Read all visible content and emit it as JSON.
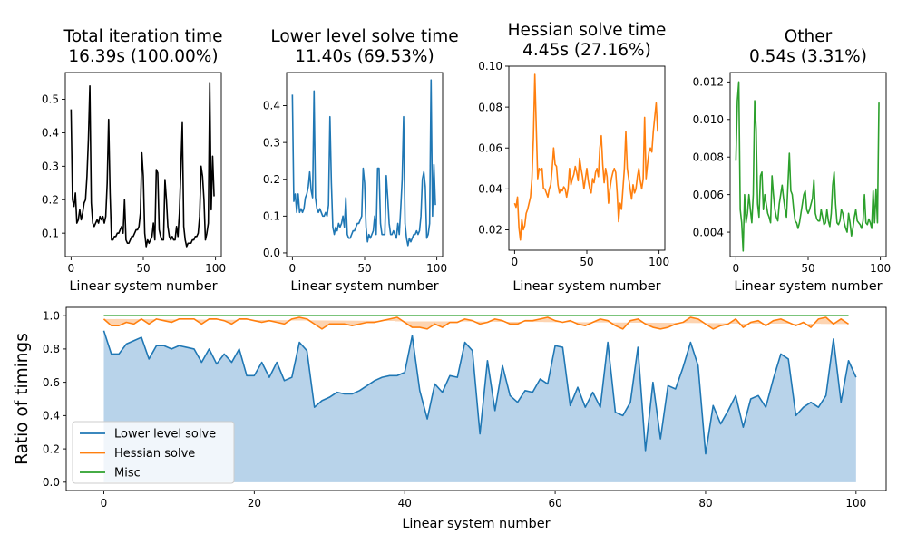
{
  "figure": {
    "bottom_ylabel": "Ratio of timings",
    "bottom_xlabel": "Linear system number",
    "top_xlabel": "Linear system number"
  },
  "chart_data": [
    {
      "type": "line",
      "title_line1": "Total iteration time",
      "title_line2": "16.39s  (100.00%)",
      "xlabel": "Linear system number",
      "xlim": [
        -4,
        104
      ],
      "ylim": [
        0.03,
        0.58
      ],
      "xticks": [
        0,
        50,
        100
      ],
      "yticks": [
        0.1,
        0.2,
        0.3,
        0.4,
        0.5
      ],
      "ytick_labels": [
        "0.1",
        "0.2",
        "0.3",
        "0.4",
        "0.5"
      ],
      "color": "#000000",
      "series": [
        {
          "values": [
            0.47,
            0.2,
            0.18,
            0.22,
            0.13,
            0.14,
            0.17,
            0.14,
            0.16,
            0.19,
            0.2,
            0.27,
            0.38,
            0.54,
            0.19,
            0.13,
            0.12,
            0.13,
            0.14,
            0.13,
            0.15,
            0.14,
            0.15,
            0.13,
            0.15,
            0.25,
            0.44,
            0.22,
            0.08,
            0.08,
            0.09,
            0.09,
            0.1,
            0.1,
            0.11,
            0.12,
            0.1,
            0.2,
            0.08,
            0.07,
            0.07,
            0.08,
            0.09,
            0.09,
            0.1,
            0.11,
            0.11,
            0.12,
            0.16,
            0.34,
            0.27,
            0.1,
            0.06,
            0.08,
            0.07,
            0.08,
            0.09,
            0.13,
            0.08,
            0.29,
            0.28,
            0.11,
            0.09,
            0.08,
            0.08,
            0.26,
            0.2,
            0.12,
            0.09,
            0.08,
            0.09,
            0.08,
            0.08,
            0.12,
            0.09,
            0.16,
            0.29,
            0.43,
            0.12,
            0.08,
            0.06,
            0.07,
            0.07,
            0.07,
            0.08,
            0.08,
            0.09,
            0.09,
            0.1,
            0.15,
            0.3,
            0.27,
            0.2,
            0.08,
            0.1,
            0.13,
            0.55,
            0.17,
            0.33,
            0.21
          ]
        }
      ]
    },
    {
      "type": "line",
      "title_line1": "Lower level solve time",
      "title_line2": "11.40s  (69.53%)",
      "xlabel": "Linear system number",
      "xlim": [
        -4,
        104
      ],
      "ylim": [
        -0.01,
        0.49
      ],
      "xticks": [
        0,
        50,
        100
      ],
      "yticks": [
        0.0,
        0.1,
        0.2,
        0.3,
        0.4
      ],
      "ytick_labels": [
        "0.0",
        "0.1",
        "0.2",
        "0.3",
        "0.4"
      ],
      "color": "#1f77b4",
      "series": [
        {
          "values": [
            0.43,
            0.14,
            0.16,
            0.11,
            0.16,
            0.11,
            0.12,
            0.11,
            0.12,
            0.15,
            0.16,
            0.18,
            0.22,
            0.17,
            0.15,
            0.44,
            0.15,
            0.12,
            0.11,
            0.12,
            0.11,
            0.1,
            0.1,
            0.11,
            0.1,
            0.13,
            0.37,
            0.19,
            0.07,
            0.05,
            0.07,
            0.06,
            0.08,
            0.07,
            0.08,
            0.1,
            0.07,
            0.15,
            0.05,
            0.04,
            0.04,
            0.05,
            0.06,
            0.06,
            0.07,
            0.08,
            0.08,
            0.09,
            0.1,
            0.23,
            0.19,
            0.07,
            0.03,
            0.05,
            0.04,
            0.05,
            0.06,
            0.1,
            0.05,
            0.23,
            0.23,
            0.08,
            0.05,
            0.05,
            0.05,
            0.21,
            0.15,
            0.08,
            0.05,
            0.05,
            0.06,
            0.05,
            0.04,
            0.08,
            0.05,
            0.12,
            0.2,
            0.37,
            0.08,
            0.04,
            0.02,
            0.04,
            0.03,
            0.04,
            0.05,
            0.05,
            0.06,
            0.05,
            0.06,
            0.1,
            0.2,
            0.22,
            0.18,
            0.04,
            0.05,
            0.08,
            0.47,
            0.1,
            0.24,
            0.13
          ]
        }
      ]
    },
    {
      "type": "line",
      "title_line1": "Hessian solve time",
      "title_line2": "4.45s  (27.16%)",
      "xlabel": "Linear system number",
      "xlim": [
        -4,
        104
      ],
      "ylim": [
        0.01,
        0.1
      ],
      "xticks": [
        0,
        50,
        100
      ],
      "yticks": [
        0.02,
        0.04,
        0.06,
        0.08,
        0.1
      ],
      "ytick_labels": [
        "0.02",
        "0.04",
        "0.06",
        "0.08",
        "0.10"
      ],
      "color": "#ff7f0e",
      "series": [
        {
          "values": [
            0.033,
            0.031,
            0.036,
            0.021,
            0.015,
            0.025,
            0.02,
            0.022,
            0.028,
            0.03,
            0.033,
            0.036,
            0.045,
            0.065,
            0.096,
            0.07,
            0.045,
            0.05,
            0.049,
            0.05,
            0.04,
            0.04,
            0.038,
            0.036,
            0.04,
            0.042,
            0.05,
            0.06,
            0.052,
            0.051,
            0.042,
            0.038,
            0.04,
            0.039,
            0.041,
            0.04,
            0.036,
            0.04,
            0.05,
            0.042,
            0.045,
            0.047,
            0.051,
            0.048,
            0.044,
            0.055,
            0.05,
            0.046,
            0.04,
            0.045,
            0.05,
            0.044,
            0.04,
            0.038,
            0.045,
            0.043,
            0.048,
            0.05,
            0.046,
            0.06,
            0.066,
            0.052,
            0.043,
            0.05,
            0.046,
            0.033,
            0.04,
            0.045,
            0.048,
            0.05,
            0.048,
            0.038,
            0.024,
            0.033,
            0.03,
            0.04,
            0.05,
            0.068,
            0.05,
            0.045,
            0.04,
            0.035,
            0.042,
            0.038,
            0.04,
            0.046,
            0.05,
            0.044,
            0.04,
            0.045,
            0.075,
            0.045,
            0.052,
            0.058,
            0.06,
            0.058,
            0.068,
            0.075,
            0.082,
            0.068
          ]
        }
      ]
    },
    {
      "type": "line",
      "title_line1": "Other",
      "title_line2": "0.54s  (3.31%)",
      "xlabel": "Linear system number",
      "xlim": [
        -4,
        104
      ],
      "ylim": [
        0.0027,
        0.0125
      ],
      "xticks": [
        0,
        50,
        100
      ],
      "yticks": [
        0.004,
        0.006,
        0.008,
        0.01,
        0.012
      ],
      "ytick_labels": [
        "0.004",
        "0.006",
        "0.008",
        "0.010",
        "0.012"
      ],
      "color": "#2ca02c",
      "series": [
        {
          "values": [
            0.0078,
            0.011,
            0.012,
            0.0052,
            0.0045,
            0.003,
            0.006,
            0.0045,
            0.005,
            0.006,
            0.0052,
            0.0045,
            0.006,
            0.011,
            0.0095,
            0.0055,
            0.0048,
            0.007,
            0.0072,
            0.0052,
            0.006,
            0.0055,
            0.005,
            0.0048,
            0.0045,
            0.007,
            0.006,
            0.0052,
            0.0048,
            0.0046,
            0.0055,
            0.006,
            0.0065,
            0.0058,
            0.0052,
            0.0048,
            0.0065,
            0.0082,
            0.0062,
            0.006,
            0.0052,
            0.0046,
            0.0045,
            0.0042,
            0.0045,
            0.005,
            0.0055,
            0.006,
            0.0062,
            0.0052,
            0.005,
            0.0052,
            0.0055,
            0.0058,
            0.0068,
            0.005,
            0.0047,
            0.0046,
            0.0046,
            0.0052,
            0.0048,
            0.0044,
            0.0045,
            0.0052,
            0.0046,
            0.0043,
            0.005,
            0.0065,
            0.0072,
            0.0055,
            0.0045,
            0.0044,
            0.0046,
            0.0052,
            0.005,
            0.0045,
            0.0042,
            0.004,
            0.005,
            0.0045,
            0.0038,
            0.0042,
            0.0048,
            0.0052,
            0.0046,
            0.0045,
            0.0044,
            0.0042,
            0.0046,
            0.006,
            0.0045,
            0.0044,
            0.0047,
            0.0045,
            0.0042,
            0.0062,
            0.0045,
            0.0063,
            0.0045,
            0.0109
          ]
        }
      ]
    },
    {
      "type": "area",
      "stacked": true,
      "ylabel": "Ratio of timings",
      "xlabel": "Linear system number",
      "xlim": [
        -5,
        104
      ],
      "ylim": [
        -0.05,
        1.05
      ],
      "xticks": [
        0,
        20,
        40,
        60,
        80,
        100
      ],
      "yticks": [
        0.0,
        0.2,
        0.4,
        0.6,
        0.8,
        1.0
      ],
      "ytick_labels": [
        "0.0",
        "0.2",
        "0.4",
        "0.6",
        "0.8",
        "1.0"
      ],
      "legend_position": "lower-left",
      "series": [
        {
          "name": "Lower level solve",
          "color": "#1f77b4",
          "fill": "#b8d3ea",
          "values": [
            0.91,
            0.77,
            0.77,
            0.83,
            0.85,
            0.87,
            0.74,
            0.82,
            0.82,
            0.8,
            0.82,
            0.81,
            0.8,
            0.72,
            0.8,
            0.71,
            0.77,
            0.72,
            0.8,
            0.64,
            0.64,
            0.72,
            0.63,
            0.72,
            0.61,
            0.63,
            0.84,
            0.79,
            0.45,
            0.49,
            0.51,
            0.54,
            0.53,
            0.53,
            0.55,
            0.58,
            0.61,
            0.63,
            0.64,
            0.64,
            0.66,
            0.88,
            0.55,
            0.38,
            0.59,
            0.54,
            0.64,
            0.63,
            0.84,
            0.79,
            0.29,
            0.73,
            0.43,
            0.7,
            0.52,
            0.48,
            0.55,
            0.54,
            0.62,
            0.59,
            0.82,
            0.81,
            0.46,
            0.57,
            0.45,
            0.54,
            0.45,
            0.84,
            0.42,
            0.4,
            0.48,
            0.81,
            0.19,
            0.6,
            0.26,
            0.58,
            0.56,
            0.69,
            0.84,
            0.7,
            0.17,
            0.46,
            0.35,
            0.43,
            0.52,
            0.33,
            0.5,
            0.52,
            0.45,
            0.62,
            0.77,
            0.74,
            0.4,
            0.45,
            0.48,
            0.45,
            0.52,
            0.86,
            0.48,
            0.73,
            0.63
          ]
        },
        {
          "name": "Hessian solve",
          "color": "#ff7f0e",
          "fill": "#fdd4b1",
          "values": [
            0.98,
            0.94,
            0.94,
            0.96,
            0.95,
            0.98,
            0.95,
            0.98,
            0.97,
            0.96,
            0.98,
            0.98,
            0.98,
            0.95,
            0.98,
            0.98,
            0.97,
            0.95,
            0.98,
            0.98,
            0.97,
            0.96,
            0.97,
            0.96,
            0.95,
            0.98,
            0.99,
            0.98,
            0.95,
            0.92,
            0.95,
            0.95,
            0.95,
            0.94,
            0.95,
            0.96,
            0.96,
            0.97,
            0.98,
            0.99,
            0.96,
            0.93,
            0.93,
            0.92,
            0.95,
            0.93,
            0.96,
            0.96,
            0.98,
            0.97,
            0.95,
            0.96,
            0.98,
            0.97,
            0.95,
            0.95,
            0.97,
            0.97,
            0.98,
            0.99,
            0.97,
            0.96,
            0.97,
            0.95,
            0.94,
            0.96,
            0.98,
            0.97,
            0.94,
            0.92,
            0.97,
            0.98,
            0.95,
            0.93,
            0.92,
            0.93,
            0.95,
            0.96,
            0.99,
            0.98,
            0.95,
            0.92,
            0.94,
            0.95,
            0.98,
            0.93,
            0.96,
            0.97,
            0.94,
            0.97,
            0.98,
            0.96,
            0.94,
            0.96,
            0.93,
            0.98,
            0.99,
            0.95,
            0.98,
            0.95
          ]
        },
        {
          "name": "Misc",
          "color": "#2ca02c",
          "fill": "#bfe2bf",
          "values": [
            1.0,
            1.0,
            1.0,
            1.0,
            1.0,
            1.0,
            1.0,
            1.0,
            1.0,
            1.0,
            1.0,
            1.0,
            1.0,
            1.0,
            1.0,
            1.0,
            1.0,
            1.0,
            1.0,
            1.0,
            1.0,
            1.0,
            1.0,
            1.0,
            1.0,
            1.0,
            1.0,
            1.0,
            1.0,
            1.0,
            1.0,
            1.0,
            1.0,
            1.0,
            1.0,
            1.0,
            1.0,
            1.0,
            1.0,
            1.0,
            1.0,
            1.0,
            1.0,
            1.0,
            1.0,
            1.0,
            1.0,
            1.0,
            1.0,
            1.0,
            1.0,
            1.0,
            1.0,
            1.0,
            1.0,
            1.0,
            1.0,
            1.0,
            1.0,
            1.0,
            1.0,
            1.0,
            1.0,
            1.0,
            1.0,
            1.0,
            1.0,
            1.0,
            1.0,
            1.0,
            1.0,
            1.0,
            1.0,
            1.0,
            1.0,
            1.0,
            1.0,
            1.0,
            1.0,
            1.0,
            1.0,
            1.0,
            1.0,
            1.0,
            1.0,
            1.0,
            1.0,
            1.0,
            1.0,
            1.0,
            1.0,
            1.0,
            1.0,
            1.0,
            1.0,
            1.0,
            1.0,
            1.0,
            1.0,
            1.0
          ]
        }
      ]
    }
  ]
}
